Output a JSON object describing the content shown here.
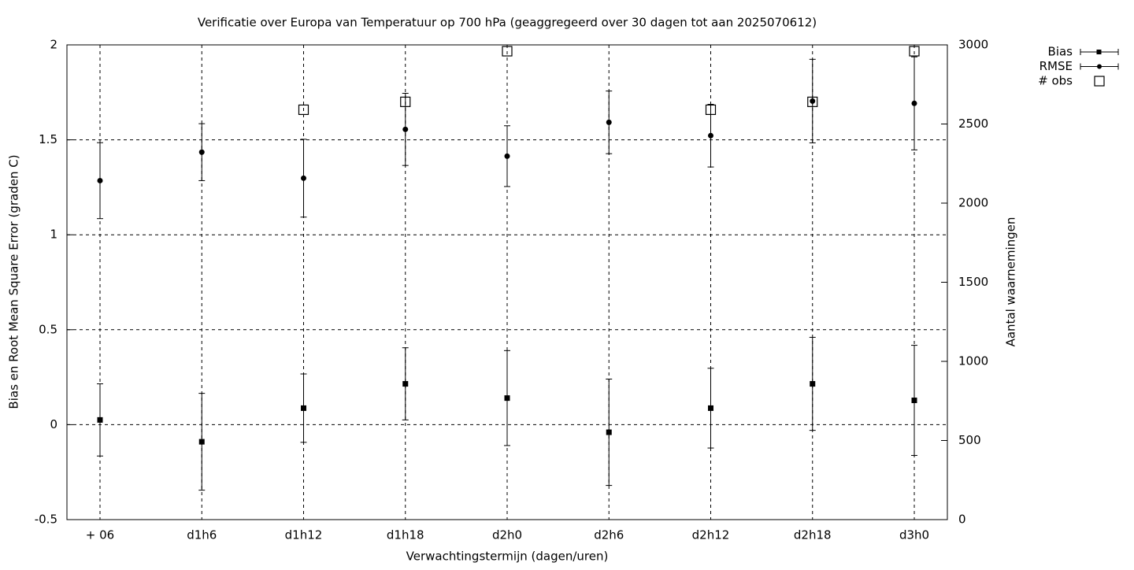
{
  "chart_data": {
    "type": "errorbar",
    "title": "Verificatie over Europa van Temperatuur op 700 hPa (geaggregeerd over 30 dagen tot aan 2025070612)",
    "x_label": "Verwachtingstermijn (dagen/uren)",
    "y_label": "Bias en Root Mean Square Error (graden C)",
    "y2_label": "Aantal waarnemingen",
    "categories": [
      "+ 06",
      "d1h6",
      "d1h12",
      "d1h18",
      "d2h0",
      "d2h6",
      "d2h12",
      "d2h18",
      "d3h0"
    ],
    "series": [
      {
        "name": "Bias",
        "color": "#000000",
        "marker": "square",
        "values": [
          0.025,
          -0.09,
          0.087,
          0.215,
          0.14,
          -0.04,
          0.087,
          0.215,
          0.128
        ],
        "errors": [
          0.19,
          0.255,
          0.18,
          0.19,
          0.25,
          0.28,
          0.21,
          0.245,
          0.29
        ]
      },
      {
        "name": "RMSE",
        "color": "#000000",
        "marker": "circle",
        "values": [
          1.285,
          1.435,
          1.298,
          1.555,
          1.414,
          1.592,
          1.522,
          1.704,
          1.692
        ],
        "errors": [
          0.2,
          0.15,
          0.205,
          0.19,
          0.16,
          0.165,
          0.165,
          0.22,
          0.245
        ]
      },
      {
        "name": "# obs",
        "color": "#000000",
        "marker": "open-square",
        "axis": "y2",
        "values": [
          null,
          null,
          2590,
          2640,
          2960,
          null,
          2590,
          2640,
          2960
        ]
      }
    ],
    "ylim": [
      -0.5,
      2
    ],
    "yticks": [
      -0.5,
      0,
      0.5,
      1,
      1.5,
      2
    ],
    "y2lim": [
      0,
      3000
    ],
    "y2ticks": [
      0,
      500,
      1000,
      1500,
      2000,
      2500,
      3000
    ],
    "grid": true,
    "legend": "outside-top-right"
  }
}
